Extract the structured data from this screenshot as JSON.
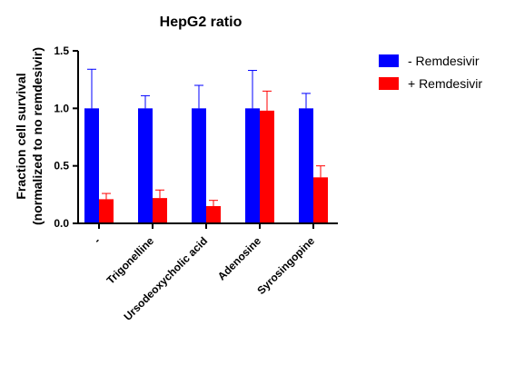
{
  "chart_data": {
    "type": "bar",
    "title": "HepG2 ratio",
    "xlabel": "",
    "ylabel_line1": "Fraction cell survival",
    "ylabel_line2": "(normalized to no remdesivir)",
    "ylim": [
      0,
      1.5
    ],
    "yticks": [
      "0.0",
      "0.5",
      "1.0",
      "1.5"
    ],
    "categories": [
      "-",
      "Trigonelline",
      "Ursodeoxycholic acid",
      "Adenosine",
      "Syrosingopine"
    ],
    "legend_position": "right",
    "series": [
      {
        "name": "- Remdesivir",
        "color": "#0000ff",
        "values": [
          1.0,
          1.0,
          1.0,
          1.0,
          1.0
        ],
        "errors": [
          0.34,
          0.11,
          0.2,
          0.33,
          0.13
        ]
      },
      {
        "name": "+ Remdesivir",
        "color": "#ff0000",
        "values": [
          0.21,
          0.22,
          0.15,
          0.98,
          0.4
        ],
        "errors": [
          0.05,
          0.07,
          0.05,
          0.17,
          0.1
        ]
      }
    ]
  }
}
